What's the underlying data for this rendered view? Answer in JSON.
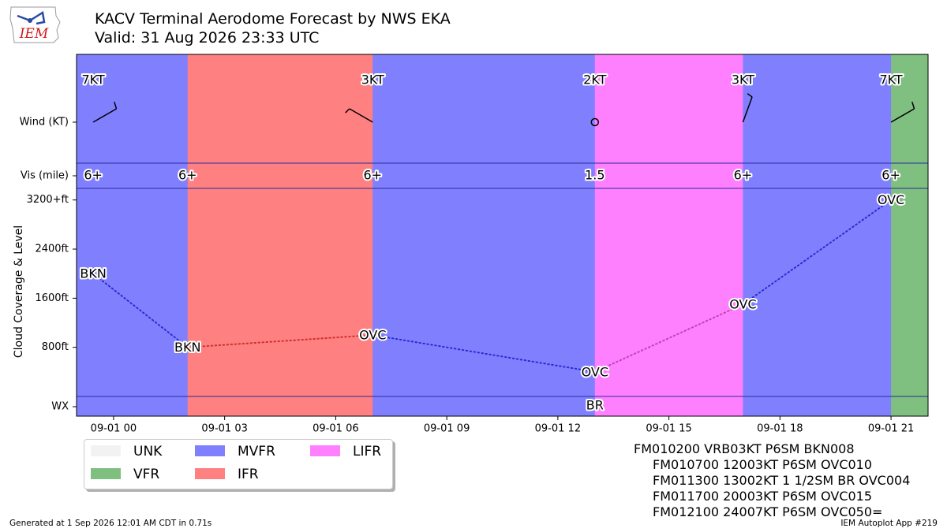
{
  "header": {
    "logo_text": "IEM",
    "title_line1": "KACV Terminal Aerodome Forecast by NWS EKA",
    "title_line2": "Valid: 31 Aug 2026 23:33 UTC"
  },
  "chart_data": {
    "type": "timeline",
    "ylabel": "Cloud Coverage & Level",
    "row_labels": {
      "wind": "Wind (KT)",
      "vis": "Vis (mile)",
      "wx": "WX"
    },
    "y_ticks": [
      {
        "value": 800,
        "label": "800ft"
      },
      {
        "value": 1600,
        "label": "1600ft"
      },
      {
        "value": 2400,
        "label": "2400ft"
      },
      {
        "value": 3200,
        "label": "3200+ft"
      }
    ],
    "x_ticks": [
      {
        "hour": 0,
        "label": "09-01 00"
      },
      {
        "hour": 3,
        "label": "09-01 03"
      },
      {
        "hour": 6,
        "label": "09-01 06"
      },
      {
        "hour": 9,
        "label": "09-01 09"
      },
      {
        "hour": 12,
        "label": "09-01 12"
      },
      {
        "hour": 15,
        "label": "09-01 15"
      },
      {
        "hour": 18,
        "label": "09-01 18"
      },
      {
        "hour": 21,
        "label": "09-01 21"
      }
    ],
    "x_range_hours": [
      -1.0,
      22.0
    ],
    "category_colors": {
      "UNK": "#f2f2f2",
      "VFR": "#7fbf7f",
      "MVFR": "#8080ff",
      "IFR": "#ff8080",
      "LIFR": "#ff80ff"
    },
    "periods": [
      {
        "start": -0.55,
        "end": 2.0,
        "category": "MVFR"
      },
      {
        "start": 2.0,
        "end": 7.0,
        "category": "IFR"
      },
      {
        "start": 7.0,
        "end": 13.0,
        "category": "MVFR"
      },
      {
        "start": 13.0,
        "end": 17.0,
        "category": "LIFR"
      },
      {
        "start": 17.0,
        "end": 21.0,
        "category": "MVFR"
      },
      {
        "start": 21.0,
        "end": 22.0,
        "category": "VFR"
      }
    ],
    "wind": [
      {
        "time": -0.55,
        "speed_label": "7KT",
        "dir": 240,
        "speed": 7
      },
      {
        "time": 7.0,
        "speed_label": "3KT",
        "dir": 120,
        "speed": 3
      },
      {
        "time": 13.0,
        "speed_label": "2KT",
        "dir": null,
        "speed": 2
      },
      {
        "time": 17.0,
        "speed_label": "3KT",
        "dir": 200,
        "speed": 3
      },
      {
        "time": 21.0,
        "speed_label": "7KT",
        "dir": 240,
        "speed": 7
      }
    ],
    "vis": [
      {
        "time": -0.55,
        "label": "6+"
      },
      {
        "time": 2.0,
        "label": "6+"
      },
      {
        "time": 7.0,
        "label": "6+"
      },
      {
        "time": 13.0,
        "label": "1.5"
      },
      {
        "time": 17.0,
        "label": "6+"
      },
      {
        "time": 21.0,
        "label": "6+"
      }
    ],
    "clouds": [
      {
        "time": -0.55,
        "level": 2000,
        "cover": "BKN",
        "line_color": "#2b2bd4"
      },
      {
        "time": 2.0,
        "level": 800,
        "cover": "BKN",
        "line_color": "#d03030"
      },
      {
        "time": 7.0,
        "level": 1000,
        "cover": "OVC",
        "line_color": "#2b2bd4"
      },
      {
        "time": 13.0,
        "level": 400,
        "cover": "OVC",
        "line_color": "#c040c0"
      },
      {
        "time": 17.0,
        "level": 1500,
        "cover": "OVC",
        "line_color": "#2b2bd4"
      },
      {
        "time": 21.0,
        "level": 5000,
        "cover": "OVC",
        "line_color": "#2b2bd4"
      }
    ],
    "wx": [
      {
        "time": 13.0,
        "label": "BR"
      }
    ]
  },
  "legend": {
    "items": [
      {
        "label": "UNK",
        "color": "#f2f2f2"
      },
      {
        "label": "VFR",
        "color": "#7fbf7f"
      },
      {
        "label": "MVFR",
        "color": "#8080ff"
      },
      {
        "label": "IFR",
        "color": "#ff8080"
      },
      {
        "label": "LIFR",
        "color": "#ff80ff"
      }
    ]
  },
  "taf": {
    "line1": "FM010200 VRB03KT P6SM BKN008",
    "line2": "FM010700 12003KT P6SM OVC010",
    "line3": "FM011300 13002KT 1 1/2SM BR OVC004",
    "line4": "FM011700 20003KT P6SM OVC015",
    "line5": "FM012100 24007KT P6SM OVC050="
  },
  "footer": {
    "generated": "Generated at 1 Sep 2026 12:01 AM CDT in 0.71s",
    "app": "IEM Autoplot App #219"
  }
}
